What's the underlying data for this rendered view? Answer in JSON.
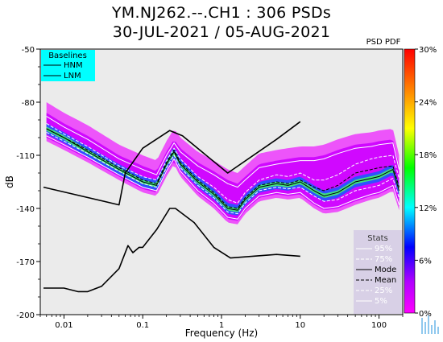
{
  "header": {
    "title_line1": "YM.NJ262.--.CH1 : 306 PSDs",
    "title_line2": "30-JUL-2021 / 05-AUG-2021"
  },
  "chart_data": {
    "type": "heatmap",
    "xlabel": "Frequency (Hz)",
    "ylabel": "dB",
    "x_scale": "log",
    "xlim": [
      0.005,
      200
    ],
    "ylim": [
      -200,
      -50
    ],
    "xticks": [
      0.01,
      0.1,
      1,
      10,
      100
    ],
    "xtick_labels": [
      "0.01",
      "0.1",
      "1",
      "10",
      "100"
    ],
    "yticks": [
      -50,
      -80,
      -110,
      -140,
      -170,
      -200
    ],
    "ytick_labels": [
      "-50",
      "-80",
      "-110",
      "-140",
      "-170",
      "-200"
    ],
    "colorbar": {
      "label": "PSD PDF",
      "range": [
        0,
        30
      ],
      "ticks": [
        0,
        6,
        12,
        18,
        24,
        30
      ],
      "tick_labels": [
        "0%",
        "6%",
        "12%",
        "18%",
        "24%",
        "30%"
      ]
    },
    "baselines_legend": {
      "title": "Baselines",
      "entries": [
        "HNM",
        "LNM"
      ],
      "background": "#00ffff"
    },
    "stats_legend": {
      "title": "Stats",
      "entries": [
        "95%",
        "75%",
        "Mode",
        "Mean",
        "25%",
        "5%"
      ],
      "background": "#d8d0e6"
    },
    "series": [
      {
        "name": "HNM",
        "x": [
          0.0055,
          0.05,
          0.06,
          0.1,
          0.22,
          0.32,
          1.2,
          5,
          10
        ],
        "y": [
          -128,
          -138,
          -120,
          -106,
          -96,
          -99,
          -120,
          -101,
          -91
        ]
      },
      {
        "name": "LNM",
        "x": [
          0.0055,
          0.01,
          0.015,
          0.02,
          0.03,
          0.05,
          0.065,
          0.075,
          0.09,
          0.1,
          0.15,
          0.22,
          0.26,
          0.45,
          0.8,
          1.3,
          5,
          10
        ],
        "y": [
          -185,
          -185,
          -187,
          -187,
          -184,
          -174,
          -161,
          -165,
          -162,
          -162,
          -152,
          -140,
          -140,
          -148,
          -162,
          -168,
          -166,
          -167
        ]
      },
      {
        "name": "Mode",
        "x": [
          0.006,
          0.01,
          0.02,
          0.05,
          0.1,
          0.15,
          0.2,
          0.25,
          0.3,
          0.5,
          0.8,
          1.2,
          1.6,
          2,
          3,
          5,
          7,
          10,
          15,
          20,
          30,
          50,
          80,
          100,
          150,
          180
        ],
        "y": [
          -95,
          -100,
          -108,
          -118,
          -125,
          -127,
          -115,
          -108,
          -115,
          -125,
          -132,
          -140,
          -141,
          -135,
          -128,
          -126,
          -127,
          -125,
          -130,
          -133,
          -131,
          -125,
          -123,
          -122,
          -118,
          -130
        ]
      },
      {
        "name": "Mean",
        "x": [
          0.006,
          0.01,
          0.02,
          0.05,
          0.1,
          0.15,
          0.2,
          0.25,
          0.3,
          0.5,
          0.8,
          1.2,
          1.6,
          2,
          3,
          5,
          7,
          10,
          15,
          20,
          30,
          50,
          80,
          100,
          150,
          180
        ],
        "y": [
          -95,
          -100,
          -107,
          -117,
          -124,
          -126,
          -114,
          -107,
          -114,
          -124,
          -131,
          -139,
          -140,
          -134,
          -127,
          -125,
          -126,
          -124,
          -128,
          -130,
          -127,
          -120,
          -118,
          -117,
          -116,
          -128
        ]
      },
      {
        "name": "95%",
        "x": [
          0.006,
          0.01,
          0.02,
          0.05,
          0.1,
          0.15,
          0.2,
          0.25,
          0.3,
          0.5,
          0.8,
          1.2,
          1.6,
          2,
          3,
          5,
          7,
          10,
          15,
          20,
          30,
          50,
          80,
          100,
          150,
          180
        ],
        "y": [
          -88,
          -94,
          -101,
          -112,
          -118,
          -121,
          -110,
          -103,
          -108,
          -116,
          -121,
          -126,
          -128,
          -124,
          -117,
          -115,
          -114,
          -113,
          -113,
          -112,
          -109,
          -106,
          -105,
          -104,
          -103,
          -118
        ]
      },
      {
        "name": "75%",
        "x": [
          0.006,
          0.01,
          0.02,
          0.05,
          0.1,
          0.15,
          0.2,
          0.25,
          0.3,
          0.5,
          0.8,
          1.2,
          1.6,
          2,
          3,
          5,
          7,
          10,
          15,
          20,
          30,
          50,
          80,
          100,
          150,
          180
        ],
        "y": [
          -92,
          -98,
          -105,
          -116,
          -122,
          -124,
          -113,
          -106,
          -112,
          -122,
          -128,
          -135,
          -137,
          -131,
          -124,
          -121,
          -122,
          -120,
          -124,
          -124,
          -121,
          -115,
          -112,
          -111,
          -110,
          -123
        ]
      },
      {
        "name": "25%",
        "x": [
          0.006,
          0.01,
          0.02,
          0.05,
          0.1,
          0.15,
          0.2,
          0.25,
          0.3,
          0.5,
          0.8,
          1.2,
          1.6,
          2,
          3,
          5,
          7,
          10,
          15,
          20,
          30,
          50,
          80,
          100,
          150,
          180
        ],
        "y": [
          -97,
          -102,
          -109,
          -119,
          -126,
          -128,
          -117,
          -110,
          -117,
          -127,
          -134,
          -142,
          -143,
          -137,
          -130,
          -128,
          -129,
          -128,
          -133,
          -136,
          -135,
          -130,
          -128,
          -127,
          -123,
          -134
        ]
      },
      {
        "name": "5%",
        "x": [
          0.006,
          0.01,
          0.02,
          0.05,
          0.1,
          0.15,
          0.2,
          0.25,
          0.3,
          0.5,
          0.8,
          1.2,
          1.6,
          2,
          3,
          5,
          7,
          10,
          15,
          20,
          30,
          50,
          80,
          100,
          150,
          180
        ],
        "y": [
          -99,
          -104,
          -111,
          -121,
          -128,
          -130,
          -119,
          -112,
          -119,
          -130,
          -137,
          -145,
          -146,
          -140,
          -133,
          -131,
          -132,
          -131,
          -137,
          -140,
          -139,
          -135,
          -132,
          -131,
          -127,
          -138
        ]
      }
    ]
  }
}
